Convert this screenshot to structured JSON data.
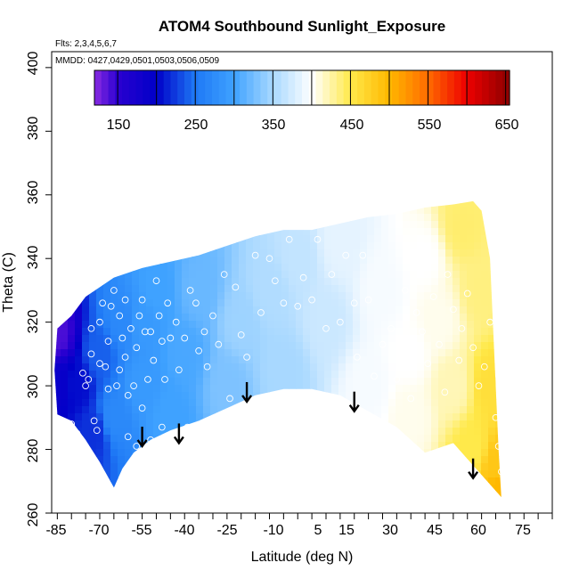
{
  "chart_data": {
    "type": "heatmap",
    "title": "ATOM4 Southbound Sunlight_Exposure",
    "flights_note": "Flts: 2,3,4,5,6,7",
    "dates_note": "MMDD: 0427,0429,0501,0503,0506,0509",
    "xlabel": "Latitude (deg N)",
    "ylabel": "Theta (C)",
    "xlim": [
      -87,
      90
    ],
    "ylim": [
      260,
      405
    ],
    "x_ticks": [
      "-85",
      "-70",
      "-55",
      "-40",
      "-25",
      "-10",
      "5",
      "15",
      "30",
      "45",
      "60",
      "75"
    ],
    "y_ticks": [
      "260",
      "280",
      "300",
      "320",
      "340",
      "360",
      "380",
      "400"
    ],
    "colorbar": {
      "min": 120,
      "max": 655,
      "labels": [
        "150",
        "250",
        "350",
        "450",
        "550",
        "650"
      ],
      "stops": [
        {
          "v": 120,
          "c": "#8a2be2"
        },
        {
          "v": 150,
          "c": "#2a00d0"
        },
        {
          "v": 200,
          "c": "#0000c8"
        },
        {
          "v": 250,
          "c": "#1e78f5"
        },
        {
          "v": 300,
          "c": "#3fa2ff"
        },
        {
          "v": 350,
          "c": "#a8d8ff"
        },
        {
          "v": 400,
          "c": "#ffffff"
        },
        {
          "v": 450,
          "c": "#ffe94a"
        },
        {
          "v": 500,
          "c": "#ffb800"
        },
        {
          "v": 550,
          "c": "#ff6a00"
        },
        {
          "v": 600,
          "c": "#ee0000"
        },
        {
          "v": 655,
          "c": "#8b0000"
        }
      ]
    },
    "field_envelope": {
      "top": [
        [
          -85,
          318
        ],
        [
          -80,
          322
        ],
        [
          -75,
          328
        ],
        [
          -70,
          331
        ],
        [
          -65,
          334
        ],
        [
          -55,
          337
        ],
        [
          -45,
          339
        ],
        [
          -35,
          341
        ],
        [
          -25,
          344
        ],
        [
          -15,
          347
        ],
        [
          -5,
          349
        ],
        [
          5,
          349
        ],
        [
          15,
          351
        ],
        [
          25,
          353
        ],
        [
          35,
          354
        ],
        [
          45,
          356
        ],
        [
          55,
          357
        ],
        [
          62,
          358
        ]
      ],
      "right_edge": [
        [
          62,
          358
        ],
        [
          65,
          355
        ],
        [
          68,
          340
        ],
        [
          70,
          300
        ],
        [
          71,
          280
        ],
        [
          72,
          265
        ]
      ],
      "bottom": [
        [
          72,
          265
        ],
        [
          65,
          272
        ],
        [
          55,
          282
        ],
        [
          45,
          279
        ],
        [
          35,
          287
        ],
        [
          25,
          292
        ],
        [
          15,
          297
        ],
        [
          5,
          299
        ],
        [
          -5,
          299
        ],
        [
          -15,
          297
        ],
        [
          -25,
          293
        ],
        [
          -35,
          289
        ],
        [
          -45,
          286
        ],
        [
          -52,
          283
        ],
        [
          -58,
          279
        ],
        [
          -62,
          274
        ],
        [
          -65,
          268
        ]
      ],
      "left_edge": [
        [
          -65,
          268
        ],
        [
          -70,
          276
        ],
        [
          -75,
          283
        ],
        [
          -80,
          289
        ],
        [
          -85,
          291
        ],
        [
          -86,
          305
        ],
        [
          -85,
          318
        ]
      ]
    },
    "value_samples": [
      {
        "lat": -85,
        "theta": 300,
        "value": 190
      },
      {
        "lat": -85,
        "theta": 316,
        "value": 140
      },
      {
        "lat": -78,
        "theta": 300,
        "value": 205
      },
      {
        "lat": -72,
        "theta": 285,
        "value": 220
      },
      {
        "lat": -70,
        "theta": 310,
        "value": 240
      },
      {
        "lat": -65,
        "theta": 290,
        "value": 270
      },
      {
        "lat": -62,
        "theta": 320,
        "value": 270
      },
      {
        "lat": -55,
        "theta": 300,
        "value": 290
      },
      {
        "lat": -55,
        "theta": 320,
        "value": 290
      },
      {
        "lat": -50,
        "theta": 330,
        "value": 300
      },
      {
        "lat": -45,
        "theta": 290,
        "value": 300
      },
      {
        "lat": -40,
        "theta": 310,
        "value": 305
      },
      {
        "lat": -35,
        "theta": 330,
        "value": 320
      },
      {
        "lat": -25,
        "theta": 300,
        "value": 330
      },
      {
        "lat": -20,
        "theta": 320,
        "value": 345
      },
      {
        "lat": -10,
        "theta": 330,
        "value": 355
      },
      {
        "lat": -5,
        "theta": 305,
        "value": 350
      },
      {
        "lat": 0,
        "theta": 340,
        "value": 365
      },
      {
        "lat": 10,
        "theta": 320,
        "value": 370
      },
      {
        "lat": 15,
        "theta": 345,
        "value": 385
      },
      {
        "lat": 25,
        "theta": 300,
        "value": 395
      },
      {
        "lat": 30,
        "theta": 330,
        "value": 395
      },
      {
        "lat": 40,
        "theta": 310,
        "value": 400
      },
      {
        "lat": 40,
        "theta": 290,
        "value": 405
      },
      {
        "lat": 45,
        "theta": 340,
        "value": 400
      },
      {
        "lat": 50,
        "theta": 320,
        "value": 405
      },
      {
        "lat": 55,
        "theta": 300,
        "value": 420
      },
      {
        "lat": 58,
        "theta": 350,
        "value": 440
      },
      {
        "lat": 62,
        "theta": 280,
        "value": 450
      },
      {
        "lat": 65,
        "theta": 330,
        "value": 435
      },
      {
        "lat": 68,
        "theta": 300,
        "value": 460
      },
      {
        "lat": 70,
        "theta": 275,
        "value": 485
      },
      {
        "lat": 71,
        "theta": 268,
        "value": 500
      }
    ],
    "observation_points": [
      [
        -80,
        288
      ],
      [
        -78,
        285
      ],
      [
        -76,
        304
      ],
      [
        -75,
        300
      ],
      [
        -74,
        302
      ],
      [
        -73,
        310
      ],
      [
        -73,
        318
      ],
      [
        -72,
        289
      ],
      [
        -71,
        286
      ],
      [
        -70,
        307
      ],
      [
        -70,
        320
      ],
      [
        -69,
        326
      ],
      [
        -68,
        306
      ],
      [
        -67,
        299
      ],
      [
        -67,
        314
      ],
      [
        -66,
        325
      ],
      [
        -65,
        330
      ],
      [
        -64,
        300
      ],
      [
        -63,
        305
      ],
      [
        -63,
        322
      ],
      [
        -62,
        315
      ],
      [
        -61,
        309
      ],
      [
        -61,
        327
      ],
      [
        -60,
        297
      ],
      [
        -60,
        284
      ],
      [
        -59,
        318
      ],
      [
        -58,
        300
      ],
      [
        -57,
        312
      ],
      [
        -57,
        281
      ],
      [
        -56,
        322
      ],
      [
        -55,
        293
      ],
      [
        -55,
        327
      ],
      [
        -54,
        317
      ],
      [
        -53,
        302
      ],
      [
        -52,
        317
      ],
      [
        -52,
        283
      ],
      [
        -51,
        308
      ],
      [
        -50,
        333
      ],
      [
        -49,
        322
      ],
      [
        -48,
        314
      ],
      [
        -48,
        287
      ],
      [
        -47,
        302
      ],
      [
        -46,
        326
      ],
      [
        -45,
        315
      ],
      [
        -44,
        284
      ],
      [
        -43,
        320
      ],
      [
        -42,
        305
      ],
      [
        -40,
        315
      ],
      [
        -39,
        287
      ],
      [
        -38,
        330
      ],
      [
        -36,
        326
      ],
      [
        -35,
        311
      ],
      [
        -33,
        317
      ],
      [
        -32,
        306
      ],
      [
        -30,
        322
      ],
      [
        -28,
        313
      ],
      [
        -26,
        335
      ],
      [
        -24,
        296
      ],
      [
        -22,
        331
      ],
      [
        -20,
        316
      ],
      [
        -18,
        309
      ],
      [
        -15,
        341
      ],
      [
        -13,
        323
      ],
      [
        -10,
        340
      ],
      [
        -8,
        333
      ],
      [
        -5,
        326
      ],
      [
        -3,
        346
      ],
      [
        0,
        325
      ],
      [
        2,
        334
      ],
      [
        5,
        327
      ],
      [
        7,
        346
      ],
      [
        10,
        318
      ],
      [
        12,
        335
      ],
      [
        15,
        320
      ],
      [
        17,
        341
      ],
      [
        20,
        326
      ],
      [
        21,
        309
      ],
      [
        23,
        341
      ],
      [
        25,
        327
      ],
      [
        27,
        303
      ],
      [
        30,
        313
      ],
      [
        33,
        318
      ],
      [
        35,
        302
      ],
      [
        38,
        330
      ],
      [
        40,
        296
      ],
      [
        42,
        323
      ],
      [
        44,
        317
      ],
      [
        45,
        338
      ],
      [
        46,
        307
      ],
      [
        48,
        328
      ],
      [
        50,
        313
      ],
      [
        52,
        298
      ],
      [
        53,
        335
      ],
      [
        55,
        324
      ],
      [
        57,
        308
      ],
      [
        58,
        318
      ],
      [
        60,
        329
      ],
      [
        62,
        312
      ],
      [
        64,
        300
      ],
      [
        66,
        306
      ],
      [
        68,
        320
      ],
      [
        70,
        290
      ],
      [
        71,
        281
      ],
      [
        72,
        273
      ]
    ],
    "arrows": [
      {
        "lat": -55,
        "theta": 281
      },
      {
        "lat": -42,
        "theta": 282
      },
      {
        "lat": -18,
        "theta": 295
      },
      {
        "lat": 20,
        "theta": 292
      },
      {
        "lat": 62,
        "theta": 271
      }
    ]
  }
}
